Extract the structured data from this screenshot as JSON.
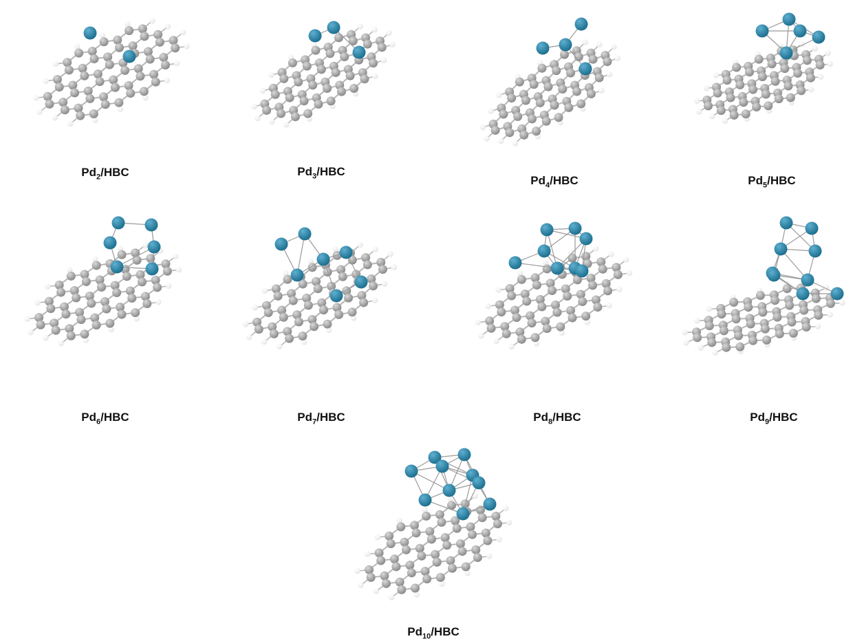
{
  "figure": {
    "panels": [
      {
        "id": "pd2",
        "element": "Pd",
        "count": "2",
        "support": "/HBC",
        "pd_atoms": 2
      },
      {
        "id": "pd3",
        "element": "Pd",
        "count": "3",
        "support": "/HBC",
        "pd_atoms": 3
      },
      {
        "id": "pd4",
        "element": "Pd",
        "count": "4",
        "support": "/HBC",
        "pd_atoms": 4
      },
      {
        "id": "pd5",
        "element": "Pd",
        "count": "5",
        "support": "/HBC",
        "pd_atoms": 5
      },
      {
        "id": "pd6",
        "element": "Pd",
        "count": "6",
        "support": "/HBC",
        "pd_atoms": 6
      },
      {
        "id": "pd7",
        "element": "Pd",
        "count": "7",
        "support": "/HBC",
        "pd_atoms": 7
      },
      {
        "id": "pd8",
        "element": "Pd",
        "count": "8",
        "support": "/HBC",
        "pd_atoms": 8
      },
      {
        "id": "pd9",
        "element": "Pd",
        "count": "9",
        "support": "/HBC",
        "pd_atoms": 9
      },
      {
        "id": "pd10",
        "element": "Pd",
        "count": "10",
        "support": "/HBC",
        "pd_atoms": 10
      }
    ]
  },
  "colors": {
    "palladium": "#1d6f8f",
    "carbon": "#8a8a8a",
    "hydrogen": "#e6e6e6",
    "bond": "#b5b5b5"
  }
}
